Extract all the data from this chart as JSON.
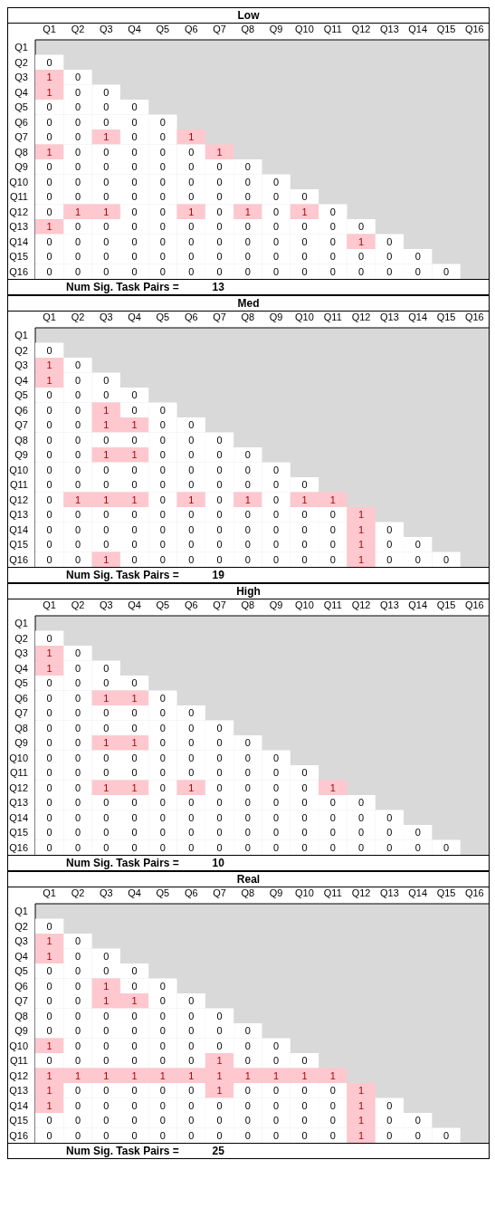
{
  "chart_data": [
    {
      "type": "heatmap",
      "title": "Low",
      "categories": [
        "Q1",
        "Q2",
        "Q3",
        "Q4",
        "Q5",
        "Q6",
        "Q7",
        "Q8",
        "Q9",
        "Q10",
        "Q11",
        "Q12",
        "Q13",
        "Q14",
        "Q15",
        "Q16"
      ],
      "y_categories": [
        "Q1",
        "Q2",
        "Q3",
        "Q4",
        "Q5",
        "Q6",
        "Q7",
        "Q8",
        "Q9",
        "Q10",
        "Q11",
        "Q12",
        "Q13",
        "Q14",
        "Q15",
        "Q16"
      ],
      "data_labels": true,
      "colors": [
        "#ffffff",
        "#ffc7ce"
      ],
      "annotations": [
        "Num Sig. Task Pairs =           13"
      ],
      "cells": [
        [
          null,
          null,
          null,
          null,
          null,
          null,
          null,
          null,
          null,
          null,
          null,
          null,
          null,
          null,
          null,
          null
        ],
        [
          0,
          null,
          null,
          null,
          null,
          null,
          null,
          null,
          null,
          null,
          null,
          null,
          null,
          null,
          null,
          null
        ],
        [
          1,
          0,
          null,
          null,
          null,
          null,
          null,
          null,
          null,
          null,
          null,
          null,
          null,
          null,
          null,
          null
        ],
        [
          1,
          0,
          0,
          null,
          null,
          null,
          null,
          null,
          null,
          null,
          null,
          null,
          null,
          null,
          null,
          null
        ],
        [
          0,
          0,
          0,
          0,
          null,
          null,
          null,
          null,
          null,
          null,
          null,
          null,
          null,
          null,
          null,
          null
        ],
        [
          0,
          0,
          0,
          0,
          0,
          null,
          null,
          null,
          null,
          null,
          null,
          null,
          null,
          null,
          null,
          null
        ],
        [
          0,
          0,
          1,
          0,
          0,
          1,
          null,
          null,
          null,
          null,
          null,
          null,
          null,
          null,
          null,
          null
        ],
        [
          1,
          0,
          0,
          0,
          0,
          0,
          1,
          null,
          null,
          null,
          null,
          null,
          null,
          null,
          null,
          null
        ],
        [
          0,
          0,
          0,
          0,
          0,
          0,
          0,
          0,
          null,
          null,
          null,
          null,
          null,
          null,
          null,
          null
        ],
        [
          0,
          0,
          0,
          0,
          0,
          0,
          0,
          0,
          0,
          null,
          null,
          null,
          null,
          null,
          null,
          null
        ],
        [
          0,
          0,
          0,
          0,
          0,
          0,
          0,
          0,
          0,
          0,
          null,
          null,
          null,
          null,
          null,
          null
        ],
        [
          0,
          1,
          1,
          0,
          0,
          1,
          0,
          1,
          0,
          1,
          0,
          null,
          null,
          null,
          null,
          null
        ],
        [
          1,
          0,
          0,
          0,
          0,
          0,
          0,
          0,
          0,
          0,
          0,
          0,
          null,
          null,
          null,
          null
        ],
        [
          0,
          0,
          0,
          0,
          0,
          0,
          0,
          0,
          0,
          0,
          0,
          1,
          0,
          null,
          null,
          null
        ],
        [
          0,
          0,
          0,
          0,
          0,
          0,
          0,
          0,
          0,
          0,
          0,
          0,
          0,
          0,
          null,
          null
        ],
        [
          0,
          0,
          0,
          0,
          0,
          0,
          0,
          0,
          0,
          0,
          0,
          0,
          0,
          0,
          0,
          null
        ]
      ]
    },
    {
      "type": "heatmap",
      "title": "Med",
      "categories": [
        "Q1",
        "Q2",
        "Q3",
        "Q4",
        "Q5",
        "Q6",
        "Q7",
        "Q8",
        "Q9",
        "Q10",
        "Q11",
        "Q12",
        "Q13",
        "Q14",
        "Q15",
        "Q16"
      ],
      "y_categories": [
        "Q1",
        "Q2",
        "Q3",
        "Q4",
        "Q5",
        "Q6",
        "Q7",
        "Q8",
        "Q9",
        "Q10",
        "Q11",
        "Q12",
        "Q13",
        "Q14",
        "Q15",
        "Q16"
      ],
      "data_labels": true,
      "colors": [
        "#ffffff",
        "#ffc7ce"
      ],
      "annotations": [
        "Num Sig. Task Pairs =           19"
      ],
      "cells": [
        [
          null,
          null,
          null,
          null,
          null,
          null,
          null,
          null,
          null,
          null,
          null,
          null,
          null,
          null,
          null,
          null
        ],
        [
          0,
          null,
          null,
          null,
          null,
          null,
          null,
          null,
          null,
          null,
          null,
          null,
          null,
          null,
          null,
          null
        ],
        [
          1,
          0,
          null,
          null,
          null,
          null,
          null,
          null,
          null,
          null,
          null,
          null,
          null,
          null,
          null,
          null
        ],
        [
          1,
          0,
          0,
          null,
          null,
          null,
          null,
          null,
          null,
          null,
          null,
          null,
          null,
          null,
          null,
          null
        ],
        [
          0,
          0,
          0,
          0,
          null,
          null,
          null,
          null,
          null,
          null,
          null,
          null,
          null,
          null,
          null,
          null
        ],
        [
          0,
          0,
          1,
          0,
          0,
          null,
          null,
          null,
          null,
          null,
          null,
          null,
          null,
          null,
          null,
          null
        ],
        [
          0,
          0,
          1,
          1,
          0,
          0,
          null,
          null,
          null,
          null,
          null,
          null,
          null,
          null,
          null,
          null
        ],
        [
          0,
          0,
          0,
          0,
          0,
          0,
          0,
          null,
          null,
          null,
          null,
          null,
          null,
          null,
          null,
          null
        ],
        [
          0,
          0,
          1,
          1,
          0,
          0,
          0,
          0,
          null,
          null,
          null,
          null,
          null,
          null,
          null,
          null
        ],
        [
          0,
          0,
          0,
          0,
          0,
          0,
          0,
          0,
          0,
          null,
          null,
          null,
          null,
          null,
          null,
          null
        ],
        [
          0,
          0,
          0,
          0,
          0,
          0,
          0,
          0,
          0,
          0,
          null,
          null,
          null,
          null,
          null,
          null
        ],
        [
          0,
          1,
          1,
          1,
          0,
          1,
          0,
          1,
          0,
          1,
          1,
          null,
          null,
          null,
          null,
          null
        ],
        [
          0,
          0,
          0,
          0,
          0,
          0,
          0,
          0,
          0,
          0,
          0,
          1,
          null,
          null,
          null,
          null
        ],
        [
          0,
          0,
          0,
          0,
          0,
          0,
          0,
          0,
          0,
          0,
          0,
          1,
          0,
          null,
          null,
          null
        ],
        [
          0,
          0,
          0,
          0,
          0,
          0,
          0,
          0,
          0,
          0,
          0,
          1,
          0,
          0,
          null,
          null
        ],
        [
          0,
          0,
          1,
          0,
          0,
          0,
          0,
          0,
          0,
          0,
          0,
          1,
          0,
          0,
          0,
          null
        ]
      ]
    },
    {
      "type": "heatmap",
      "title": "High",
      "categories": [
        "Q1",
        "Q2",
        "Q3",
        "Q4",
        "Q5",
        "Q6",
        "Q7",
        "Q8",
        "Q9",
        "Q10",
        "Q11",
        "Q12",
        "Q13",
        "Q14",
        "Q15",
        "Q16"
      ],
      "y_categories": [
        "Q1",
        "Q2",
        "Q3",
        "Q4",
        "Q5",
        "Q6",
        "Q7",
        "Q8",
        "Q9",
        "Q10",
        "Q11",
        "Q12",
        "Q13",
        "Q14",
        "Q15",
        "Q16"
      ],
      "data_labels": true,
      "colors": [
        "#ffffff",
        "#ffc7ce"
      ],
      "annotations": [
        "Num Sig. Task Pairs =           10"
      ],
      "cells": [
        [
          null,
          null,
          null,
          null,
          null,
          null,
          null,
          null,
          null,
          null,
          null,
          null,
          null,
          null,
          null,
          null
        ],
        [
          0,
          null,
          null,
          null,
          null,
          null,
          null,
          null,
          null,
          null,
          null,
          null,
          null,
          null,
          null,
          null
        ],
        [
          1,
          0,
          null,
          null,
          null,
          null,
          null,
          null,
          null,
          null,
          null,
          null,
          null,
          null,
          null,
          null
        ],
        [
          1,
          0,
          0,
          null,
          null,
          null,
          null,
          null,
          null,
          null,
          null,
          null,
          null,
          null,
          null,
          null
        ],
        [
          0,
          0,
          0,
          0,
          null,
          null,
          null,
          null,
          null,
          null,
          null,
          null,
          null,
          null,
          null,
          null
        ],
        [
          0,
          0,
          1,
          1,
          0,
          null,
          null,
          null,
          null,
          null,
          null,
          null,
          null,
          null,
          null,
          null
        ],
        [
          0,
          0,
          0,
          0,
          0,
          0,
          null,
          null,
          null,
          null,
          null,
          null,
          null,
          null,
          null,
          null
        ],
        [
          0,
          0,
          0,
          0,
          0,
          0,
          0,
          null,
          null,
          null,
          null,
          null,
          null,
          null,
          null,
          null
        ],
        [
          0,
          0,
          1,
          1,
          0,
          0,
          0,
          0,
          null,
          null,
          null,
          null,
          null,
          null,
          null,
          null
        ],
        [
          0,
          0,
          0,
          0,
          0,
          0,
          0,
          0,
          0,
          null,
          null,
          null,
          null,
          null,
          null,
          null
        ],
        [
          0,
          0,
          0,
          0,
          0,
          0,
          0,
          0,
          0,
          0,
          null,
          null,
          null,
          null,
          null,
          null
        ],
        [
          0,
          0,
          1,
          1,
          0,
          1,
          0,
          0,
          0,
          0,
          1,
          null,
          null,
          null,
          null,
          null
        ],
        [
          0,
          0,
          0,
          0,
          0,
          0,
          0,
          0,
          0,
          0,
          0,
          0,
          null,
          null,
          null,
          null
        ],
        [
          0,
          0,
          0,
          0,
          0,
          0,
          0,
          0,
          0,
          0,
          0,
          0,
          0,
          null,
          null,
          null
        ],
        [
          0,
          0,
          0,
          0,
          0,
          0,
          0,
          0,
          0,
          0,
          0,
          0,
          0,
          0,
          null,
          null
        ],
        [
          0,
          0,
          0,
          0,
          0,
          0,
          0,
          0,
          0,
          0,
          0,
          0,
          0,
          0,
          0,
          null
        ]
      ]
    },
    {
      "type": "heatmap",
      "title": "Real",
      "categories": [
        "Q1",
        "Q2",
        "Q3",
        "Q4",
        "Q5",
        "Q6",
        "Q7",
        "Q8",
        "Q9",
        "Q10",
        "Q11",
        "Q12",
        "Q13",
        "Q14",
        "Q15",
        "Q16"
      ],
      "y_categories": [
        "Q1",
        "Q2",
        "Q3",
        "Q4",
        "Q5",
        "Q6",
        "Q7",
        "Q8",
        "Q9",
        "Q10",
        "Q11",
        "Q12",
        "Q13",
        "Q14",
        "Q15",
        "Q16"
      ],
      "data_labels": true,
      "colors": [
        "#ffffff",
        "#ffc7ce"
      ],
      "annotations": [
        "Num Sig. Task Pairs =           25"
      ],
      "cells": [
        [
          null,
          null,
          null,
          null,
          null,
          null,
          null,
          null,
          null,
          null,
          null,
          null,
          null,
          null,
          null,
          null
        ],
        [
          0,
          null,
          null,
          null,
          null,
          null,
          null,
          null,
          null,
          null,
          null,
          null,
          null,
          null,
          null,
          null
        ],
        [
          1,
          0,
          null,
          null,
          null,
          null,
          null,
          null,
          null,
          null,
          null,
          null,
          null,
          null,
          null,
          null
        ],
        [
          1,
          0,
          0,
          null,
          null,
          null,
          null,
          null,
          null,
          null,
          null,
          null,
          null,
          null,
          null,
          null
        ],
        [
          0,
          0,
          0,
          0,
          null,
          null,
          null,
          null,
          null,
          null,
          null,
          null,
          null,
          null,
          null,
          null
        ],
        [
          0,
          0,
          1,
          0,
          0,
          null,
          null,
          null,
          null,
          null,
          null,
          null,
          null,
          null,
          null,
          null
        ],
        [
          0,
          0,
          1,
          1,
          0,
          0,
          null,
          null,
          null,
          null,
          null,
          null,
          null,
          null,
          null,
          null
        ],
        [
          0,
          0,
          0,
          0,
          0,
          0,
          0,
          null,
          null,
          null,
          null,
          null,
          null,
          null,
          null,
          null
        ],
        [
          0,
          0,
          0,
          0,
          0,
          0,
          0,
          0,
          null,
          null,
          null,
          null,
          null,
          null,
          null,
          null
        ],
        [
          1,
          0,
          0,
          0,
          0,
          0,
          0,
          0,
          0,
          null,
          null,
          null,
          null,
          null,
          null,
          null
        ],
        [
          0,
          0,
          0,
          0,
          0,
          0,
          1,
          0,
          0,
          0,
          null,
          null,
          null,
          null,
          null,
          null
        ],
        [
          1,
          1,
          1,
          1,
          1,
          1,
          1,
          1,
          1,
          1,
          1,
          null,
          null,
          null,
          null,
          null
        ],
        [
          1,
          0,
          0,
          0,
          0,
          0,
          1,
          0,
          0,
          0,
          0,
          1,
          null,
          null,
          null,
          null
        ],
        [
          1,
          0,
          0,
          0,
          0,
          0,
          0,
          0,
          0,
          0,
          0,
          1,
          0,
          null,
          null,
          null
        ],
        [
          0,
          0,
          0,
          0,
          0,
          0,
          0,
          0,
          0,
          0,
          0,
          1,
          0,
          0,
          null,
          null
        ],
        [
          0,
          0,
          0,
          0,
          0,
          0,
          0,
          0,
          0,
          0,
          0,
          1,
          0,
          0,
          0,
          null
        ]
      ]
    }
  ]
}
